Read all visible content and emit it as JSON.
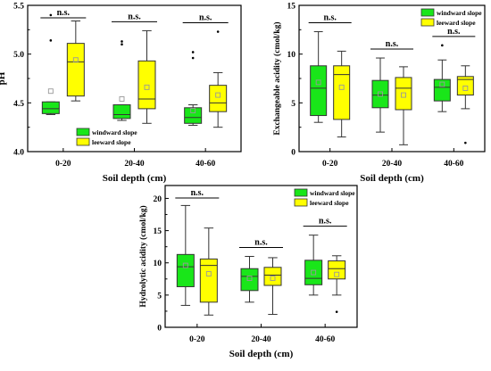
{
  "colors": {
    "windward": "#19e619",
    "leeward": "#ffff00",
    "box_stroke": "#333333",
    "axis": "#000000",
    "mean_marker": "#999999"
  },
  "chart_data": [
    {
      "type": "box",
      "id": "ph",
      "ylabel": "pH",
      "xlabel": "Soil depth (cm)",
      "ylim": [
        4.0,
        5.5
      ],
      "yticks": [
        4.0,
        4.5,
        5.0,
        5.5
      ],
      "ytick_labels": [
        "4.0",
        "4.5",
        "5.0",
        "5.5"
      ],
      "categories": [
        "0-20",
        "20-40",
        "40-60"
      ],
      "legend": {
        "position": "bottom-left",
        "entries": [
          "windward slope",
          "leeward slope"
        ]
      },
      "annotations": [
        "n.s.",
        "n.s.",
        "n.s."
      ],
      "series": [
        {
          "name": "windward slope",
          "boxes": [
            {
              "whisker_low": 4.38,
              "q1": 4.39,
              "median": 4.44,
              "q3": 4.51,
              "whisker_high": 4.51,
              "mean": 4.62,
              "outliers": [
                5.14,
                5.4
              ]
            },
            {
              "whisker_low": 4.32,
              "q1": 4.34,
              "median": 4.38,
              "q3": 4.48,
              "whisker_high": 4.48,
              "mean": 4.54,
              "outliers": [
                5.1,
                5.13
              ]
            },
            {
              "whisker_low": 4.27,
              "q1": 4.29,
              "median": 4.35,
              "q3": 4.45,
              "whisker_high": 4.48,
              "mean": 4.42,
              "outliers": [
                4.96,
                5.02
              ]
            }
          ]
        },
        {
          "name": "leeward slope",
          "boxes": [
            {
              "whisker_low": 4.52,
              "q1": 4.57,
              "median": 4.92,
              "q3": 5.11,
              "whisker_high": 5.34,
              "mean": 4.94,
              "outliers": []
            },
            {
              "whisker_low": 4.29,
              "q1": 4.44,
              "median": 4.54,
              "q3": 4.93,
              "whisker_high": 5.24,
              "mean": 4.66,
              "outliers": []
            },
            {
              "whisker_low": 4.25,
              "q1": 4.41,
              "median": 4.5,
              "q3": 4.68,
              "whisker_high": 4.81,
              "mean": 4.58,
              "outliers": [
                5.23
              ]
            }
          ]
        }
      ]
    },
    {
      "type": "box",
      "id": "exchangeable",
      "ylabel": "Exchangeable acidity (cmol/kg)",
      "xlabel": "Soil depth (cm)",
      "ylim": [
        0,
        15
      ],
      "yticks": [
        0,
        5,
        10,
        15
      ],
      "ytick_labels": [
        "0",
        "5",
        "10",
        "15"
      ],
      "categories": [
        "0-20",
        "20-40",
        "40-60"
      ],
      "legend": {
        "position": "top-right",
        "entries": [
          "windward slope",
          "leeward slope"
        ]
      },
      "annotations": [
        "n.s.",
        "n.s.",
        "n.s."
      ],
      "series": [
        {
          "name": "windward slope",
          "boxes": [
            {
              "whisker_low": 3.0,
              "q1": 3.7,
              "median": 6.5,
              "q3": 8.8,
              "whisker_high": 12.3,
              "mean": 7.1,
              "outliers": []
            },
            {
              "whisker_low": 2.0,
              "q1": 4.5,
              "median": 5.8,
              "q3": 7.3,
              "whisker_high": 9.6,
              "mean": 5.9,
              "outliers": []
            },
            {
              "whisker_low": 4.1,
              "q1": 5.2,
              "median": 6.6,
              "q3": 7.4,
              "whisker_high": 9.4,
              "mean": 6.9,
              "outliers": [
                10.9
              ]
            }
          ]
        },
        {
          "name": "leeward slope",
          "boxes": [
            {
              "whisker_low": 1.5,
              "q1": 3.3,
              "median": 7.9,
              "q3": 8.8,
              "whisker_high": 10.3,
              "mean": 6.6,
              "outliers": []
            },
            {
              "whisker_low": 0.7,
              "q1": 4.3,
              "median": 6.5,
              "q3": 7.6,
              "whisker_high": 8.7,
              "mean": 5.8,
              "outliers": []
            },
            {
              "whisker_low": 4.4,
              "q1": 5.8,
              "median": 7.4,
              "q3": 7.7,
              "whisker_high": 8.8,
              "mean": 6.5,
              "outliers": [
                0.9
              ]
            }
          ]
        }
      ]
    },
    {
      "type": "box",
      "id": "hydrolytic",
      "ylabel": "Hydrolytic acidity (cmol/kg)",
      "xlabel": "Soil depth (cm)",
      "ylim": [
        0,
        22
      ],
      "yticks": [
        0,
        5,
        10,
        15,
        20
      ],
      "ytick_labels": [
        "0",
        "5",
        "10",
        "15",
        "20"
      ],
      "categories": [
        "0-20",
        "20-40",
        "40-60"
      ],
      "legend": {
        "position": "top-right",
        "entries": [
          "windward slope",
          "leeward slope"
        ]
      },
      "annotations": [
        "n.s.",
        "n.s.",
        "n.s."
      ],
      "series": [
        {
          "name": "windward slope",
          "boxes": [
            {
              "whisker_low": 3.4,
              "q1": 6.3,
              "median": 9.4,
              "q3": 11.3,
              "whisker_high": 18.9,
              "mean": 9.6,
              "outliers": []
            },
            {
              "whisker_low": 3.9,
              "q1": 5.7,
              "median": 7.9,
              "q3": 9.1,
              "whisker_high": 11.0,
              "mean": 7.6,
              "outliers": []
            },
            {
              "whisker_low": 5.0,
              "q1": 6.6,
              "median": 7.6,
              "q3": 10.4,
              "whisker_high": 14.3,
              "mean": 8.5,
              "outliers": []
            }
          ]
        },
        {
          "name": "leeward slope",
          "boxes": [
            {
              "whisker_low": 1.9,
              "q1": 3.9,
              "median": 9.6,
              "q3": 10.6,
              "whisker_high": 15.4,
              "mean": 8.3,
              "outliers": []
            },
            {
              "whisker_low": 2.0,
              "q1": 6.5,
              "median": 8.1,
              "q3": 9.3,
              "whisker_high": 10.8,
              "mean": 7.6,
              "outliers": []
            },
            {
              "whisker_low": 5.0,
              "q1": 7.5,
              "median": 9.1,
              "q3": 10.3,
              "whisker_high": 11.1,
              "mean": 8.2,
              "outliers": [
                2.4
              ]
            }
          ]
        }
      ]
    }
  ]
}
